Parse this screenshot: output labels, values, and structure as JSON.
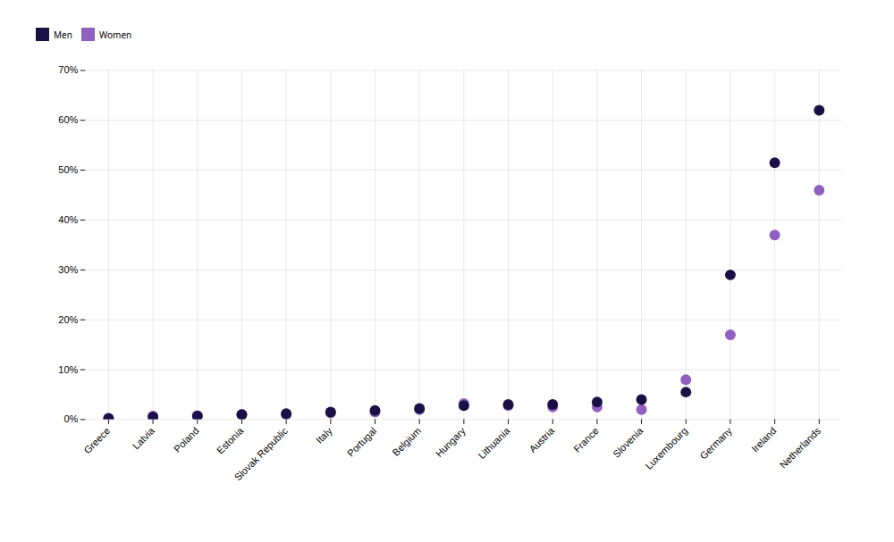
{
  "chart_data": {
    "type": "scatter",
    "categories": [
      "Greece",
      "Latvia",
      "Poland",
      "Estonia",
      "Slovak Republic",
      "Italy",
      "Portugal",
      "Belgium",
      "Hungary",
      "Lithuania",
      "Austria",
      "France",
      "Slovenia",
      "Luxembourg",
      "Germany",
      "Ireland",
      "Netherlands"
    ],
    "series": [
      {
        "name": "Men",
        "color": "#1a1045",
        "marker": "circle",
        "values": [
          0.2,
          0.5,
          0.7,
          1.0,
          1.2,
          1.5,
          1.8,
          2.2,
          2.8,
          3.0,
          3.0,
          3.5,
          4.0,
          5.5,
          29.0,
          51.5,
          62.0
        ]
      },
      {
        "name": "Women",
        "color": "#9060c0",
        "marker": "circle",
        "values": [
          0.3,
          0.7,
          0.8,
          1.0,
          1.0,
          1.3,
          1.5,
          2.0,
          3.2,
          2.8,
          2.5,
          2.5,
          2.0,
          8.0,
          17.0,
          37.0,
          46.0
        ]
      }
    ],
    "ylim": [
      0,
      70
    ],
    "yticks": [
      {
        "value": 0,
        "label": "0%"
      },
      {
        "value": 10,
        "label": "10%"
      },
      {
        "value": 20,
        "label": "20%"
      },
      {
        "value": 30,
        "label": "30%"
      },
      {
        "value": 40,
        "label": "40%"
      },
      {
        "value": 50,
        "label": "50%"
      },
      {
        "value": 60,
        "label": "60%"
      },
      {
        "value": 70,
        "label": "70%"
      }
    ],
    "grid": true,
    "legend": "top"
  }
}
